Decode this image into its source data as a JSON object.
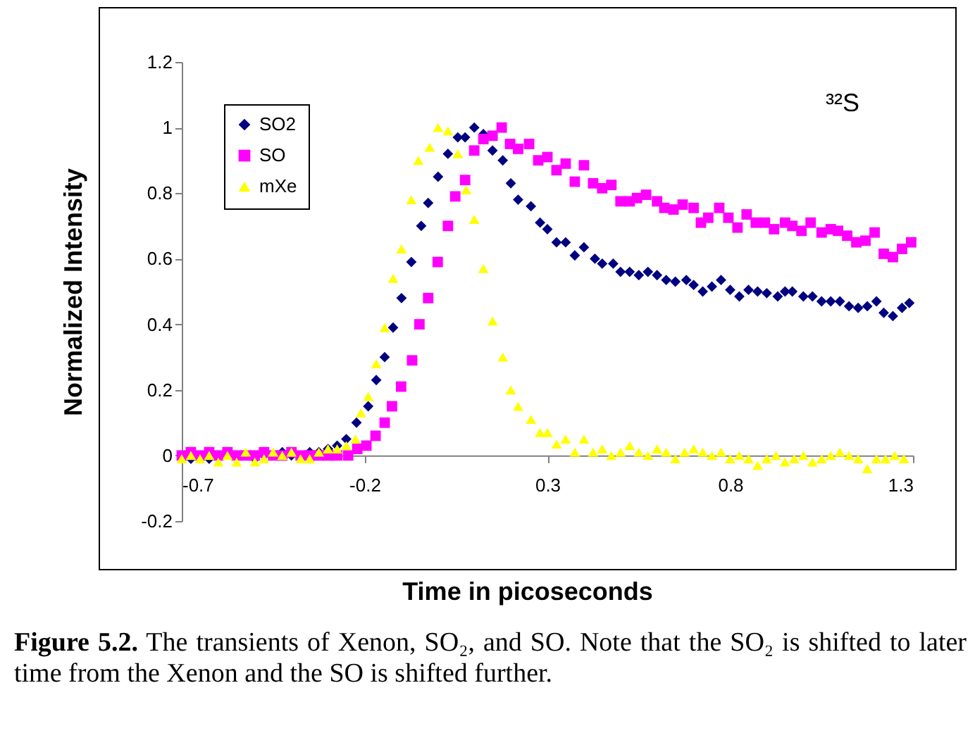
{
  "chart_data": {
    "type": "scatter",
    "xlabel": "Time in picoseconds",
    "ylabel": "Normalized Intensity",
    "annotations": [
      "³²S",
      "Figure 5.2.",
      "The transients of Xenon, SO₂, and SO.  Note that the SO₂ is shifted to later time from the Xenon and the SO is shifted further."
    ],
    "xlim": [
      -0.7,
      1.3
    ],
    "xticks": [
      -0.7,
      -0.2,
      0.3,
      0.8,
      1.3
    ],
    "ylim": [
      -0.2,
      1.2
    ],
    "yticks": [
      -0.2,
      0,
      0.2,
      0.4,
      0.6,
      0.8,
      1,
      1.2
    ],
    "grid": false,
    "legend": "top left",
    "series": [
      {
        "name": "SO2",
        "color": "#000080",
        "marker": "diamond",
        "x": [
          -0.675,
          -0.625,
          -0.5,
          -0.475,
          -0.425,
          -0.4,
          -0.35,
          -0.325,
          -0.3,
          -0.275,
          -0.25,
          -0.222,
          -0.19,
          -0.168,
          -0.145,
          -0.122,
          -0.099,
          -0.072,
          -0.045,
          -0.026,
          0.001,
          0.028,
          0.055,
          0.075,
          0.1,
          0.125,
          0.15,
          0.178,
          0.2,
          0.22,
          0.255,
          0.28,
          0.3,
          0.325,
          0.35,
          0.375,
          0.4,
          0.43,
          0.45,
          0.48,
          0.5,
          0.525,
          0.55,
          0.575,
          0.6,
          0.625,
          0.65,
          0.68,
          0.7,
          0.725,
          0.75,
          0.775,
          0.8,
          0.825,
          0.85,
          0.875,
          0.9,
          0.93,
          0.95,
          0.97,
          1.0,
          1.025,
          1.05,
          1.075,
          1.1,
          1.125,
          1.15,
          1.175,
          1.2,
          1.22,
          1.245,
          1.27,
          1.29
        ],
        "values": [
          -0.01,
          -0.01,
          -0.01,
          0,
          0.01,
          0,
          0.01,
          0.01,
          0.02,
          0.03,
          0.05,
          0.1,
          0.15,
          0.23,
          0.3,
          0.39,
          0.48,
          0.59,
          0.7,
          0.77,
          0.85,
          0.92,
          0.97,
          0.97,
          1.0,
          0.98,
          0.93,
          0.9,
          0.83,
          0.78,
          0.76,
          0.71,
          0.69,
          0.65,
          0.65,
          0.61,
          0.635,
          0.6,
          0.585,
          0.585,
          0.56,
          0.56,
          0.55,
          0.56,
          0.55,
          0.535,
          0.53,
          0.535,
          0.52,
          0.5,
          0.515,
          0.535,
          0.505,
          0.485,
          0.505,
          0.5,
          0.495,
          0.485,
          0.5,
          0.5,
          0.485,
          0.485,
          0.47,
          0.47,
          0.47,
          0.455,
          0.45,
          0.455,
          0.47,
          0.435,
          0.425,
          0.45,
          0.465
        ]
      },
      {
        "name": "SO",
        "color": "#ff00ff",
        "marker": "square",
        "x": [
          -0.7,
          -0.675,
          -0.65,
          -0.625,
          -0.6,
          -0.575,
          -0.55,
          -0.525,
          -0.5,
          -0.475,
          -0.45,
          -0.425,
          -0.4,
          -0.375,
          -0.35,
          -0.325,
          -0.3,
          -0.275,
          -0.245,
          -0.22,
          -0.195,
          -0.17,
          -0.145,
          -0.125,
          -0.1,
          -0.07,
          -0.05,
          -0.026,
          0.0,
          0.028,
          0.048,
          0.075,
          0.1,
          0.125,
          0.15,
          0.175,
          0.198,
          0.22,
          0.25,
          0.275,
          0.3,
          0.325,
          0.35,
          0.375,
          0.4,
          0.425,
          0.45,
          0.475,
          0.5,
          0.525,
          0.545,
          0.57,
          0.6,
          0.62,
          0.645,
          0.67,
          0.7,
          0.72,
          0.74,
          0.77,
          0.795,
          0.82,
          0.845,
          0.87,
          0.895,
          0.92,
          0.95,
          0.97,
          0.995,
          1.02,
          1.05,
          1.075,
          1.095,
          1.12,
          1.145,
          1.17,
          1.195,
          1.22,
          1.245,
          1.27,
          1.295
        ],
        "values": [
          0,
          0.01,
          0,
          0.01,
          0,
          0.01,
          0,
          0,
          0,
          0.01,
          0,
          0,
          0.01,
          0,
          0,
          0,
          0,
          0,
          0,
          0.02,
          0.03,
          0.06,
          0.1,
          0.15,
          0.21,
          0.29,
          0.4,
          0.48,
          0.59,
          0.7,
          0.79,
          0.84,
          0.93,
          0.965,
          0.975,
          1.0,
          0.95,
          0.935,
          0.95,
          0.9,
          0.91,
          0.87,
          0.89,
          0.835,
          0.885,
          0.83,
          0.815,
          0.825,
          0.775,
          0.775,
          0.785,
          0.795,
          0.775,
          0.755,
          0.75,
          0.765,
          0.755,
          0.71,
          0.725,
          0.755,
          0.725,
          0.695,
          0.735,
          0.71,
          0.71,
          0.69,
          0.71,
          0.7,
          0.685,
          0.71,
          0.68,
          0.69,
          0.685,
          0.67,
          0.65,
          0.655,
          0.68,
          0.615,
          0.605,
          0.63,
          0.65
        ]
      },
      {
        "name": "mXe",
        "color": "#ffff00",
        "marker": "triangle",
        "x": [
          -0.7,
          -0.675,
          -0.65,
          -0.625,
          -0.6,
          -0.575,
          -0.55,
          -0.525,
          -0.5,
          -0.475,
          -0.45,
          -0.425,
          -0.4,
          -0.375,
          -0.35,
          -0.325,
          -0.3,
          -0.275,
          -0.25,
          -0.225,
          -0.21,
          -0.19,
          -0.168,
          -0.145,
          -0.122,
          -0.099,
          -0.072,
          -0.053,
          -0.022,
          0.001,
          0.028,
          0.055,
          0.078,
          0.1,
          0.125,
          0.15,
          0.178,
          0.2,
          0.22,
          0.255,
          0.28,
          0.3,
          0.325,
          0.35,
          0.375,
          0.4,
          0.425,
          0.45,
          0.475,
          0.5,
          0.525,
          0.55,
          0.575,
          0.6,
          0.625,
          0.65,
          0.675,
          0.7,
          0.725,
          0.75,
          0.775,
          0.8,
          0.825,
          0.85,
          0.875,
          0.9,
          0.925,
          0.95,
          0.975,
          1.0,
          1.025,
          1.05,
          1.075,
          1.1,
          1.125,
          1.15,
          1.175,
          1.2,
          1.225,
          1.25,
          1.275
        ],
        "values": [
          -0.01,
          0,
          -0.01,
          0,
          -0.02,
          0,
          -0.02,
          0.01,
          -0.02,
          -0.01,
          0.01,
          0,
          0.01,
          -0.01,
          -0.01,
          0.01,
          0.02,
          0.02,
          0.03,
          0.05,
          0.13,
          0.18,
          0.28,
          0.39,
          0.54,
          0.63,
          0.78,
          0.9,
          0.94,
          1.0,
          0.99,
          0.92,
          0.81,
          0.72,
          0.57,
          0.41,
          0.3,
          0.2,
          0.15,
          0.11,
          0.07,
          0.07,
          0.035,
          0.05,
          0.01,
          0.05,
          0.01,
          0.02,
          0.0,
          0.01,
          0.03,
          0.01,
          0.0,
          0.02,
          0.01,
          -0.01,
          0.01,
          0.02,
          0.01,
          0.0,
          0.01,
          -0.01,
          0.0,
          -0.01,
          -0.03,
          -0.01,
          0.0,
          -0.02,
          -0.01,
          0.0,
          -0.02,
          -0.01,
          0.0,
          0.01,
          0.0,
          -0.01,
          -0.04,
          -0.01,
          -0.01,
          0.0,
          -0.01
        ]
      }
    ]
  }
}
